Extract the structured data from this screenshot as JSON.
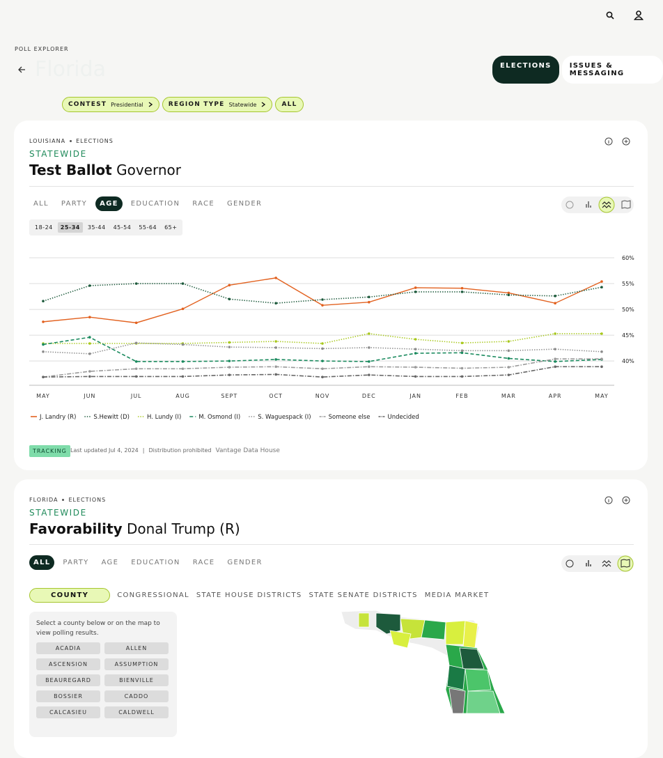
{
  "header": {
    "section": "POLL EXPLORER",
    "title": "Florida",
    "tabs": [
      "ELECTIONS",
      "ISSUES & MESSAGING"
    ]
  },
  "filters": [
    {
      "label": "CONTEST",
      "value": "Presidential"
    },
    {
      "label": "REGION TYPE",
      "value": "Statewide"
    },
    {
      "label": "ALL"
    }
  ],
  "card1": {
    "breadcrumb": [
      "LOUISIANA",
      "ELECTIONS"
    ],
    "region": "STATEWIDE",
    "title_bold": "Test Ballot",
    "title_rest": "Governor",
    "tabs": [
      "ALL",
      "PARTY",
      "AGE",
      "EDUCATION",
      "RACE",
      "GENDER"
    ],
    "active_tab": 2,
    "chips": [
      "18-24",
      "25-34",
      "35-44",
      "45-54",
      "55-64",
      "65+"
    ],
    "active_chip": 1,
    "footer": {
      "badge": "TRACKING",
      "updated": "Last updated Jul 4, 2024",
      "separator": "|",
      "notice": "Distribution prohibited",
      "source": "Vantage Data House"
    }
  },
  "chart_data": {
    "type": "line",
    "categories": [
      "MAY",
      "JUN",
      "JUL",
      "AUG",
      "SEPT",
      "OCT",
      "NOV",
      "DEC",
      "JAN",
      "FEB",
      "MAR",
      "APR",
      "MAY"
    ],
    "ylim": [
      35.3,
      60
    ],
    "yticks": [
      {
        "value": 60,
        "label": "60%"
      },
      {
        "value": 55,
        "label": "55%"
      },
      {
        "value": 50,
        "label": "50%"
      },
      {
        "value": 45,
        "label": "45%"
      },
      {
        "value": 40,
        "label": "40%"
      }
    ],
    "grid": true,
    "series": [
      {
        "name": "J. Landry (R)",
        "color": "#e2611f",
        "style": "solid",
        "values": [
          47.6,
          48.5,
          47.4,
          50.1,
          54.7,
          56.1,
          50.8,
          51.4,
          54.2,
          54.1,
          53.2,
          51.2,
          55.4
        ]
      },
      {
        "name": "S.Hewitt (D)",
        "color": "#1d5a3c",
        "style": "dotted",
        "values": [
          51.6,
          54.6,
          55,
          55,
          52,
          51.2,
          51.9,
          52.4,
          53.4,
          53.4,
          52.8,
          52.6,
          54.3
        ]
      },
      {
        "name": "H. Lundy (I)",
        "color": "#a8c81c",
        "style": "dotted",
        "values": [
          43.4,
          43.4,
          43.4,
          43.4,
          43.6,
          43.8,
          43.4,
          45.3,
          44.2,
          43.5,
          43.8,
          45.3,
          45.3
        ]
      },
      {
        "name": "M. Osmond (I)",
        "color": "#1a8a5e",
        "style": "dashed",
        "values": [
          43.2,
          44.6,
          39.9,
          39.9,
          40,
          40.3,
          40,
          39.9,
          41.5,
          41.6,
          40.5,
          39.9,
          40.3
        ]
      },
      {
        "name": "S. Waguespack (I)",
        "color": "#8c8c8c",
        "style": "dotted",
        "values": [
          41.8,
          41.4,
          43.5,
          43.2,
          42.7,
          42.6,
          42.4,
          42.6,
          42.3,
          42,
          42,
          42.3,
          41.8
        ]
      },
      {
        "name": "Someone else",
        "color": "#9a9a9a",
        "style": "dashdot",
        "values": [
          36.9,
          38,
          38.5,
          38.5,
          38.8,
          38.9,
          38.5,
          38.9,
          38.8,
          38.6,
          38.8,
          40.4,
          40.4
        ]
      },
      {
        "name": "Undecided",
        "color": "#666666",
        "style": "dashdot",
        "values": [
          36.9,
          37,
          37,
          37,
          37.3,
          37.4,
          36.9,
          37.3,
          37,
          37,
          37.3,
          38.9,
          38.9
        ]
      }
    ]
  },
  "card2": {
    "breadcrumb": [
      "FLORIDA",
      "ELECTIONS"
    ],
    "region": "STATEWIDE",
    "title_bold": "Favorability",
    "title_rest": "Donal Trump (R)",
    "tabs": [
      "ALL",
      "PARTY",
      "AGE",
      "EDUCATION",
      "RACE",
      "GENDER"
    ],
    "active_tab": 0,
    "district_tabs": [
      "COUNTY",
      "CONGRESSIONAL",
      "STATE HOUSE DISTRICTS",
      "STATE SENATE DISTRICTS",
      "MEDIA MARKET"
    ],
    "active_district": 0,
    "instruction": "Select a county below or on the map to view polling results.",
    "counties": [
      "ACADIA",
      "ALLEN",
      "ASCENSION",
      "ASSUMPTION",
      "BEAUREGARD",
      "BIENVILLE",
      "BOSSIER",
      "CADDO",
      "CALCASIEU",
      "CALDWELL"
    ]
  }
}
